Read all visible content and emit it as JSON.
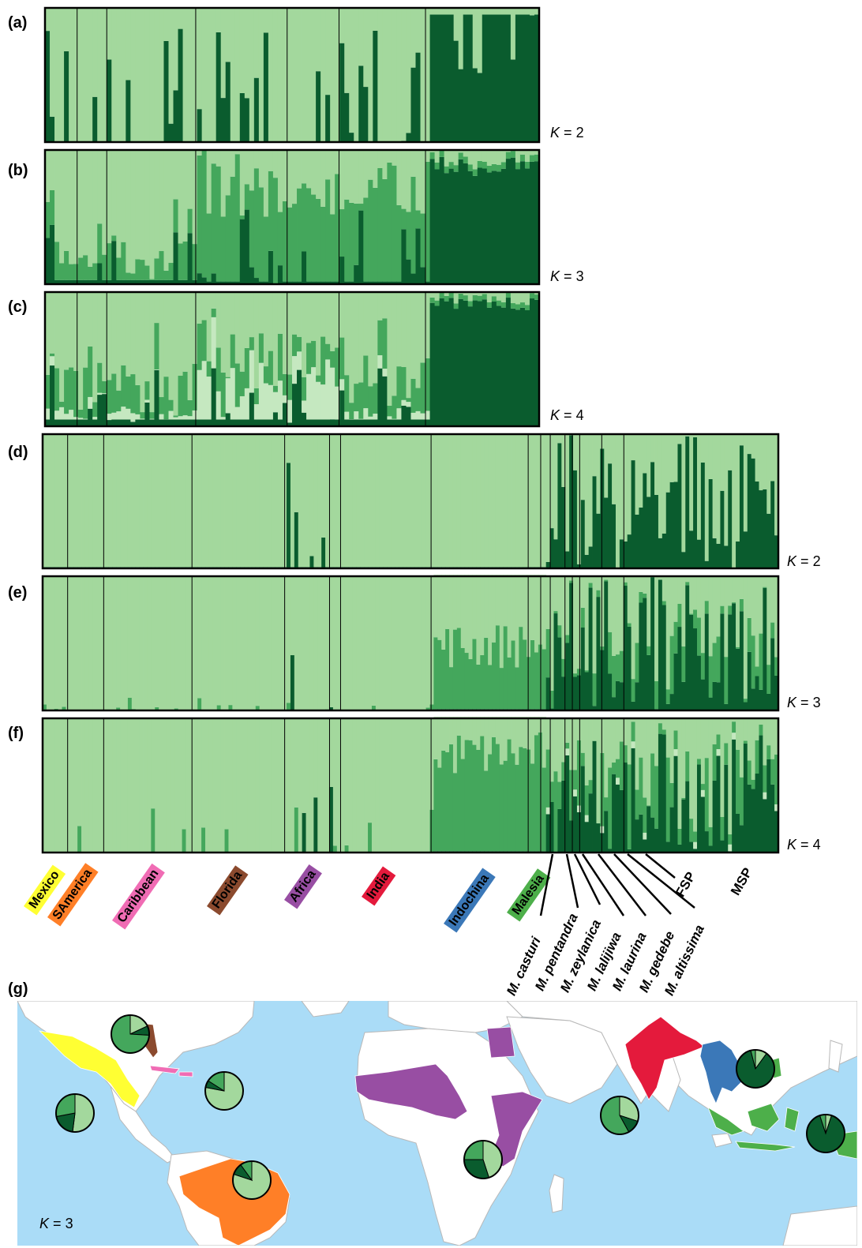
{
  "panels": {
    "a": {
      "letter": "(a)",
      "k": "2"
    },
    "b": {
      "letter": "(b)",
      "k": "3"
    },
    "c": {
      "letter": "(c)",
      "k": "4"
    },
    "d": {
      "letter": "(d)",
      "k": "2"
    },
    "e": {
      "letter": "(e)",
      "k": "3"
    },
    "f": {
      "letter": "(f)",
      "k": "4"
    },
    "g": {
      "letter": "(g)",
      "k": "3"
    }
  },
  "k_prefix": "K",
  "k_equals": "=",
  "regions": [
    {
      "label": "Mexico",
      "color": "#ffff33"
    },
    {
      "label": "SAmerica",
      "color": "#ff7f27"
    },
    {
      "label": "Caribbean",
      "color": "#f06cb4"
    },
    {
      "label": "Florida",
      "color": "#8b4a2e"
    },
    {
      "label": "Africa",
      "color": "#984ea3"
    },
    {
      "label": "India",
      "color": "#e41a3c"
    },
    {
      "label": "Indochina",
      "color": "#3b78b8"
    },
    {
      "label": "Malesia",
      "color": "#4daf4a"
    }
  ],
  "species": [
    "M. casturi",
    "M. pentandra",
    "M. zeylanica",
    "M. lalijiwa",
    "M. laurina",
    "M. gedebe",
    "M. altissima"
  ],
  "pop_groups": [
    "FSP",
    "MSP"
  ],
  "colors": {
    "c1": "#a3d89d",
    "c2": "#0a5c2e",
    "c3": "#44a75c",
    "c4": "#c5e8c0",
    "ocean": "#aadcf7",
    "land": "#ffffff",
    "border": "#b8b8b8"
  },
  "map_pies": [
    {
      "region": "Florida",
      "shares": [
        0.18,
        0.08,
        0.74
      ]
    },
    {
      "region": "Caribbean",
      "shares": [
        0.78,
        0.06,
        0.16
      ]
    },
    {
      "region": "Mexico",
      "shares": [
        0.52,
        0.2,
        0.28
      ]
    },
    {
      "region": "SAmerica",
      "shares": [
        0.8,
        0.1,
        0.1
      ]
    },
    {
      "region": "Africa",
      "shares": [
        0.45,
        0.3,
        0.25
      ]
    },
    {
      "region": "India",
      "shares": [
        0.3,
        0.12,
        0.58
      ]
    },
    {
      "region": "Indochina",
      "shares": [
        0.1,
        0.86,
        0.04
      ]
    },
    {
      "region": "Malesia",
      "shares": [
        0.05,
        0.9,
        0.05
      ]
    }
  ]
}
